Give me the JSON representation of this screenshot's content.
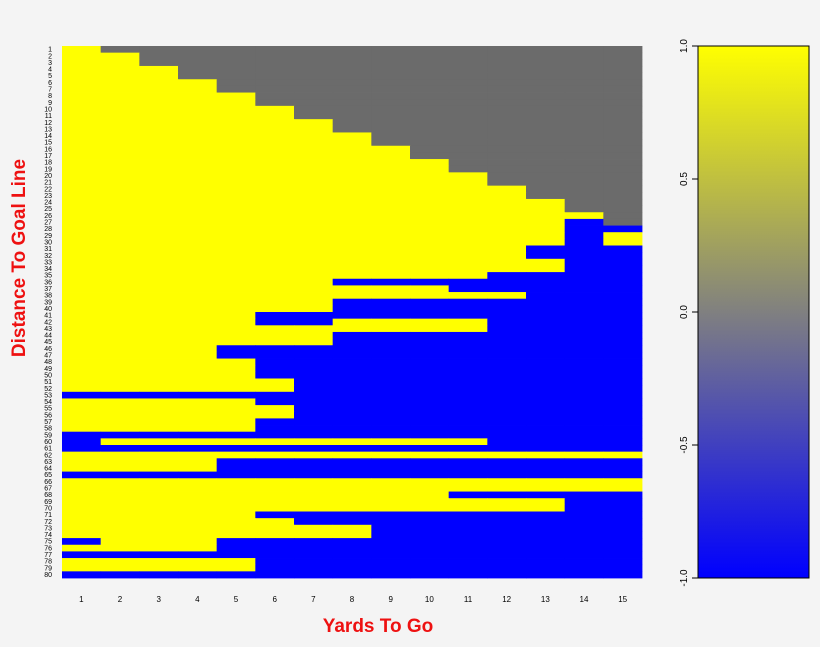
{
  "chart_data": {
    "type": "heatmap",
    "xlabel": "Yards To Go",
    "ylabel": "Distance To Goal Line",
    "x_categories": [
      1,
      2,
      3,
      4,
      5,
      6,
      7,
      8,
      9,
      10,
      11,
      12,
      13,
      14,
      15
    ],
    "y_categories": [
      1,
      2,
      3,
      4,
      5,
      6,
      7,
      8,
      9,
      10,
      11,
      12,
      13,
      14,
      15,
      16,
      17,
      18,
      19,
      20,
      21,
      22,
      23,
      24,
      25,
      26,
      27,
      28,
      29,
      30,
      31,
      32,
      33,
      34,
      35,
      36,
      37,
      38,
      39,
      40,
      41,
      42,
      43,
      44,
      45,
      46,
      47,
      48,
      49,
      50,
      51,
      52,
      53,
      54,
      55,
      56,
      57,
      58,
      59,
      60,
      61,
      62,
      63,
      64,
      65,
      66,
      67,
      68,
      69,
      70,
      71,
      72,
      73,
      74,
      75,
      76,
      77,
      78,
      79,
      80
    ],
    "value_encoding": "row-major grid, one string per Distance To Goal Line (1-80), one character per Yards To Go (1-15): Y = 1.0 (yellow), B = -1.0 (blue), - = 0.0 / not applicable (gray)",
    "grid": [
      "Y--------------",
      "YY-------------",
      "YY-------------",
      "YYY------------",
      "YYY------------",
      "YYYY-----------",
      "YYYY-----------",
      "YYYYY----------",
      "YYYYY----------",
      "YYYYYY---------",
      "YYYYYY---------",
      "YYYYYYY--------",
      "YYYYYYY--------",
      "YYYYYYYY-------",
      "YYYYYYYY-------",
      "YYYYYYYYY------",
      "YYYYYYYYY------",
      "YYYYYYYYYY-----",
      "YYYYYYYYYY-----",
      "YYYYYYYYYYY----",
      "YYYYYYYYYYY----",
      "YYYYYYYYYYYY---",
      "YYYYYYYYYYYY---",
      "YYYYYYYYYYYYY--",
      "YYYYYYYYYYYYY--",
      "YYYYYYYYYYYYYY-",
      "YYYYYYYYYYYYYY-",
      "YYYYYYYYYYYYYYY",
      "YYYYYYYYYYYYYYY",
      "YYYYYYYYYYYYYYY",
      "YYYYYYYYYYYYYYY",
      "YYYYYYYYYYYYYYY",
      "YYYYYYYYYYYYYYY",
      "YYYYYYYYYYYYYYY",
      "YYYYYYYYYYYYYYY",
      "YYYYYYYYYYYYYYY",
      "YYYYYYYYYYYYYYY",
      "YYYYYYYYYYYYYYY",
      "YYYYYYYYYYYYYYY",
      "YYYYYYYYYYYYYYY",
      "YYYYYYYYYYYYYYY",
      "YYYYYYYYYYYYYYY",
      "YYYYYYYYYYYYYYY",
      "YYYYYYYYYYYYYYY",
      "YYYYYYYYYYYYYYY",
      "YYYYYYYYYYYYYYY",
      "YYYYYYYYYYYYYYY",
      "YYYYYYYYYYYYYYY",
      "YYYYYYYYYYYYYYY",
      "YYYYYYYYYYYYYYY",
      "YYYYYYYYYYYYYYY",
      "YYYYYYYYYYYYYYY",
      "YYYYYYYYYYYYYYY",
      "YYYYYYYYYYYYYYY",
      "YYYYYYYYYYYYYYY",
      "YYYYYYYYYYYYYYY",
      "YYYYYYYYYYYYYYY",
      "YYYYYYYYYYYYYYY",
      "YYYYYYYYYYYYYYY",
      "YYYYYYYYYYYYYYY",
      "YYYYYYYYYYYYYYY",
      "YYYYYYYYYYYYYYY",
      "YYYYYYYYYYYYYYY",
      "YYYYYYYYYYYYYYY",
      "YYYYYYYYYYYYYYY",
      "YYYYYYYYYYYYYYY",
      "YYYYYYYYYYYYYYY",
      "YYYYYYYYYYYYYYY",
      "YYYYYYYYYYYYYYY",
      "YYYYYYYYYYYYYYY",
      "YYYYYYYYYYYYYYY",
      "YYYYYYYYYYYYYYY",
      "YYYYYYYYYYYYYYY",
      "YYYYYYYYYYYYYYY",
      "YYYYYYYYYYYYYYY",
      "YYYYYYYYYYYYYYY",
      "YYYYYYYYYYYYYYY",
      "YYYYYYYYYYYYYYY",
      "YYYYYYYYYYYYYYY",
      "YYYYYYYYYYYYYYY"
    ],
    "overrides_blue": [
      "27:14",
      "28:14-15",
      "29:14",
      "30:14",
      "31:13",
      "32:14-15",
      "33:14-15",
      "34:14-15",
      "31:14-15",
      "32:13",
      "35:12-15",
      "36:8-15",
      "37:11-15",
      "38:13-15",
      "39:8-15",
      "40:8-15",
      "41:6-15",
      "42:6-7",
      "42:12-15",
      "43:6-15",
      "44:8-15",
      "45:8-15",
      "46:5-15",
      "47:5-15",
      "48:6-15",
      "49:6-15",
      "50:6-15",
      "51:7-15",
      "52:6-15",
      "53:1-15",
      "54:6-15",
      "55:7-15",
      "56:6-15",
      "57:6-15",
      "58:6-15",
      "59:1-15",
      "60:1",
      "60:12-15",
      "61:1-15",
      "62:1-15",
      "63:1-15",
      "64:5-15",
      "65:1-15",
      "66:1-15",
      "68:11-15",
      "69:1-15",
      "70:14-15",
      "71:1-15",
      "72:6-15",
      "73:7-15",
      "74:9-15",
      "75:1",
      "75:5-15",
      "76:5-15",
      "77:1-15",
      "78:1-15",
      "79:6-15",
      "80:1-15"
    ],
    "overrides_yellow": [
      "36:1-7",
      "37:1-10",
      "38:1-10",
      "38:11-12",
      "42:8-11",
      "43:1-5",
      "43:6-11",
      "44:1-7",
      "45:1-5",
      "51:1-5",
      "52:1-6",
      "54:1-5",
      "56:1-6",
      "60:2-11",
      "62:1-4",
      "62:5-15",
      "63:1-4",
      "64:1-4",
      "66:1-15",
      "67:1-15",
      "68:1-10",
      "69:1-13",
      "70:1-13",
      "71:1-5",
      "72:1-6",
      "73:1-8",
      "74:2-4",
      "76:1-4",
      "78:1-5",
      "79:1-4"
    ],
    "colorbar": {
      "min": -1.0,
      "max": 1.0,
      "ticks": [
        "-1.0",
        "-0.5",
        "0.0",
        "0.5",
        "1.0"
      ],
      "colors": {
        "high": "#ffff00",
        "mid": "#808080",
        "low": "#0000ff"
      }
    }
  },
  "colors": {
    "yellow": "#ffff00",
    "blue": "#0000ff",
    "gray": "#6b6b6b",
    "axis_title": "#ee1111",
    "background": "#f4f4f4"
  }
}
